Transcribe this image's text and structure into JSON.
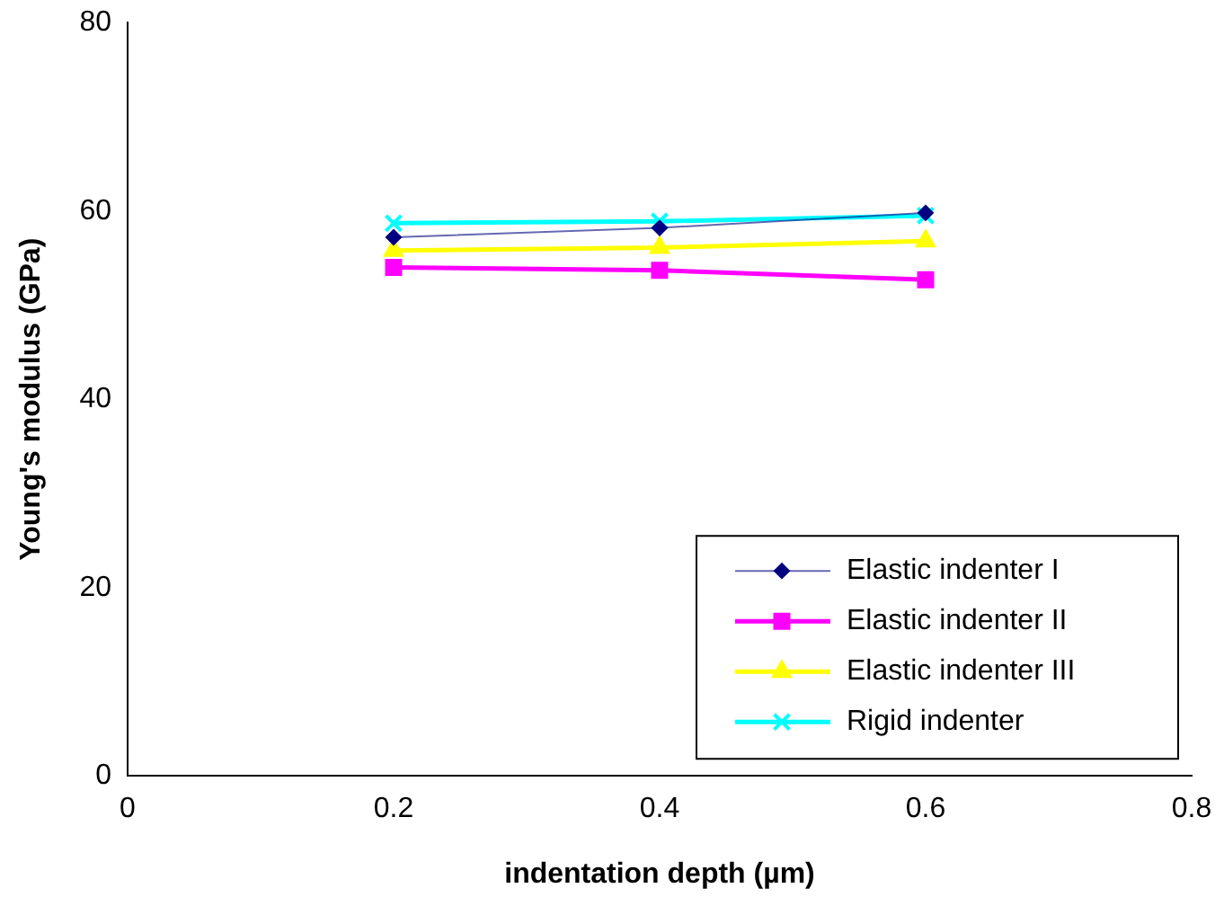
{
  "chart_data": {
    "type": "line",
    "xlabel": "indentation depth (µm)",
    "ylabel": "Young's modulus (GPa)",
    "x": [
      0.2,
      0.4,
      0.6
    ],
    "xlim": [
      0,
      0.8
    ],
    "xticks": [
      0,
      0.2,
      0.4,
      0.6,
      0.8
    ],
    "ylim": [
      0,
      80
    ],
    "yticks": [
      0,
      20,
      40,
      60,
      80
    ],
    "grid": false,
    "legend": "bottom right",
    "series": [
      {
        "name": "Elastic indenter I",
        "color": "#000080",
        "values": [
          57.2,
          58.2,
          59.8
        ],
        "marker": "diamond"
      },
      {
        "name": "Elastic indenter II",
        "color": "#ff00ff",
        "values": [
          54.0,
          53.7,
          52.7
        ],
        "marker": "square"
      },
      {
        "name": "Elastic indenter III",
        "color": "#ffff00",
        "values": [
          55.8,
          56.1,
          56.8
        ],
        "marker": "triangle"
      },
      {
        "name": "Rigid indenter",
        "color": "#00ffff",
        "values": [
          58.7,
          58.9,
          59.5
        ],
        "marker": "cross"
      }
    ]
  }
}
